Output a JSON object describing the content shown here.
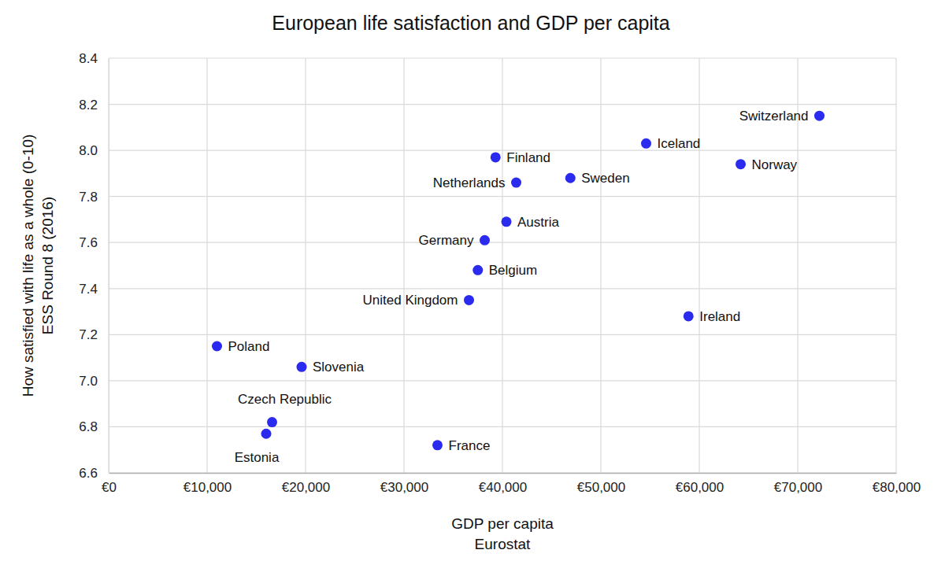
{
  "chart_data": {
    "type": "scatter",
    "title": "European life satisfaction and GDP per capita",
    "xlabel": [
      "GDP per capita",
      "Eurostat"
    ],
    "ylabel": [
      "How satisfied with life as a whole (0-10)",
      "ESS Round 8 (2016)"
    ],
    "labels": [
      "Switzerland",
      "Iceland",
      "Finland",
      "Norway",
      "Sweden",
      "Netherlands",
      "Austria",
      "Germany",
      "Belgium",
      "United Kingdom",
      "Ireland",
      "Poland",
      "Slovenia",
      "Czech Republic",
      "Estonia",
      "France"
    ],
    "x": [
      72200,
      54600,
      39300,
      64200,
      46900,
      41400,
      40400,
      38200,
      37500,
      36600,
      58900,
      11000,
      19600,
      16600,
      16000,
      33400
    ],
    "values": [
      8.15,
      8.03,
      7.97,
      7.94,
      7.88,
      7.86,
      7.69,
      7.61,
      7.48,
      7.35,
      7.28,
      7.15,
      7.06,
      6.82,
      6.77,
      6.72
    ],
    "color": "#2b2bf0",
    "xlim": [
      0,
      80000
    ],
    "xticks": [
      {
        "value": 0,
        "label": "€0"
      },
      {
        "value": 10000,
        "label": "€10,000"
      },
      {
        "value": 20000,
        "label": "€20,000"
      },
      {
        "value": 30000,
        "label": "€30,000"
      },
      {
        "value": 40000,
        "label": "€40,000"
      },
      {
        "value": 50000,
        "label": "€50,000"
      },
      {
        "value": 60000,
        "label": "€60,000"
      },
      {
        "value": 70000,
        "label": "€70,000"
      },
      {
        "value": 80000,
        "label": "€80,000"
      }
    ],
    "ylim": [
      6.6,
      8.4
    ],
    "yticks": [
      6.6,
      6.8,
      {
        "value": 7,
        "label": "7.0"
      },
      7.2,
      7.4,
      7.6,
      7.8,
      {
        "value": 8,
        "label": "8.0"
      },
      8.2,
      8.4
    ],
    "grid": true
  }
}
